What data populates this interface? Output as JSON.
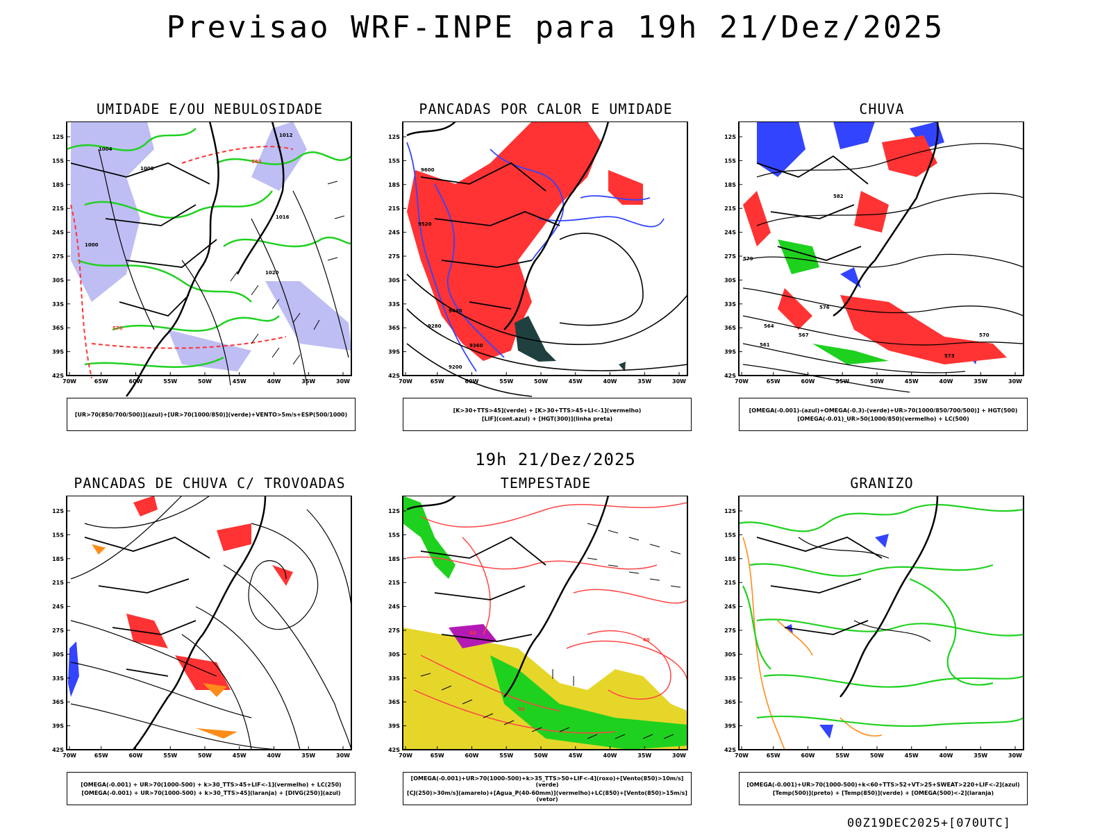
{
  "title": "Previsao WRF-INPE  para 19h 21/Dez/2025",
  "mid_date": "19h 21/Dez/2025",
  "footer": "00Z19DEC2025+[070UTC]",
  "axes": {
    "lat_labels": [
      "12S",
      "15S",
      "18S",
      "21S",
      "24S",
      "27S",
      "30S",
      "33S",
      "36S",
      "39S",
      "42S"
    ],
    "lon_labels": [
      "70W",
      "65W",
      "60W",
      "55W",
      "50W",
      "45W",
      "40W",
      "35W",
      "30W"
    ]
  },
  "colors": {
    "red": "#ff3333",
    "green": "#1fd11f",
    "blue": "#3344ff",
    "lavender": "#b3b3f2",
    "yellow": "#e6d62a",
    "orange": "#ff8c1a",
    "purple": "#b31ab3",
    "teal": "#204040"
  },
  "panels": [
    {
      "id": "umidade",
      "title": "UMIDADE E/OU NEBULOSIDADE",
      "legend": [
        "[UR>70(850/700/500)](azul)+[UR>70(1000/850)](verde)+VENTO>5m/s+ESP(500/1000)"
      ],
      "contour_labels": [
        "1004",
        "1008",
        "1012",
        "1016",
        "1020",
        "1000",
        "570",
        "582"
      ]
    },
    {
      "id": "pancadas-calor",
      "title": "PANCADAS POR CALOR E UMIDADE",
      "legend": [
        "[K>30+TTS>45](verde) + [K>30+TTS>45+LI<-1](vermelho)",
        "[LIF](cont.azul) + [HGT(300)](linha preta)"
      ],
      "contour_labels": [
        "9600",
        "9520",
        "9440",
        "9360",
        "9280",
        "9200"
      ]
    },
    {
      "id": "chuva",
      "title": "CHUVA",
      "legend": [
        "[OMEGA(-0.001)-(azul)+OMEGA(-0.3)-(verde)+UR>70(1000/850/700/500)] + HGT(500)",
        "[OMEGA(-0.01)_UR>50(1000/850)(vermelho) + LC(500)"
      ],
      "contour_labels": [
        "582",
        "579",
        "576",
        "573",
        "570",
        "567",
        "564",
        "561"
      ]
    },
    {
      "id": "pancadas-trovoadas",
      "title": "PANCADAS DE CHUVA C/ TROVOADAS",
      "legend": [
        "[OMEGA(-0.001) + UR>70(1000-500) + k>30_TTS>45+LIF<-1](vermelho) + LC(250)",
        "[OMEGA(-0.001) + UR>70(1000-500) + k>30_TTS>45](laranja) + [DIVG(250)](azul)"
      ],
      "contour_labels": []
    },
    {
      "id": "tempestade",
      "title": "TEMPESTADE",
      "legend": [
        "[OMEGA(-0.001)+UR>70(1000-500)+k>35_TTS>50+LIF<-4](roxo)+[Vento(850)>10m/s](verde)",
        "[CJ(250)>30m/s](amarelo)+[Agua_P(40-60mm)](vermelho)+LC(850)+[Vento(850)>15m/s](vetor)"
      ],
      "contour_labels": [
        "40",
        "50",
        "60"
      ]
    },
    {
      "id": "granizo",
      "title": "GRANIZO",
      "legend": [
        "[OMEGA(-0.001)+UR>70(1000-500)+k<60+TTS>52+VT>25+SWEAT>220+LIF<-2](azul)",
        "[Temp(500)](preto) + [Temp(850)](verde) + [OMEGA(500)<-2](laranja)"
      ],
      "contour_labels": []
    }
  ]
}
